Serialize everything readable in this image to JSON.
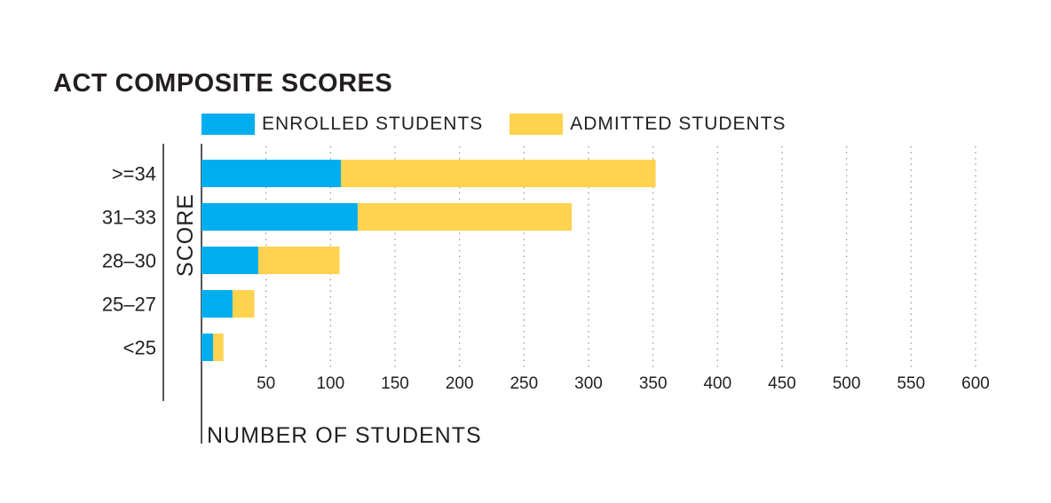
{
  "chart_data": {
    "type": "bar",
    "orientation": "horizontal",
    "stacked": true,
    "title": "ACT COMPOSITE SCORES",
    "ylabel": "SCORE",
    "xlabel": "NUMBER OF STUDENTS",
    "categories": [
      ">=34",
      "31–33",
      "28–30",
      "25–27",
      "<25"
    ],
    "series": [
      {
        "name": "ENROLLED STUDENTS",
        "color": "#00aeef",
        "values": [
          108,
          121,
          44,
          24,
          9
        ]
      },
      {
        "name": "ADMITTED STUDENTS",
        "color": "#ffd24f",
        "values": [
          352,
          287,
          107,
          41,
          17
        ]
      }
    ],
    "x_ticks": [
      50,
      100,
      150,
      200,
      250,
      300,
      350,
      400,
      450,
      500,
      550,
      600
    ],
    "xlim": [
      0,
      600
    ],
    "grid": "vertical-dotted",
    "legend_position": "top"
  }
}
